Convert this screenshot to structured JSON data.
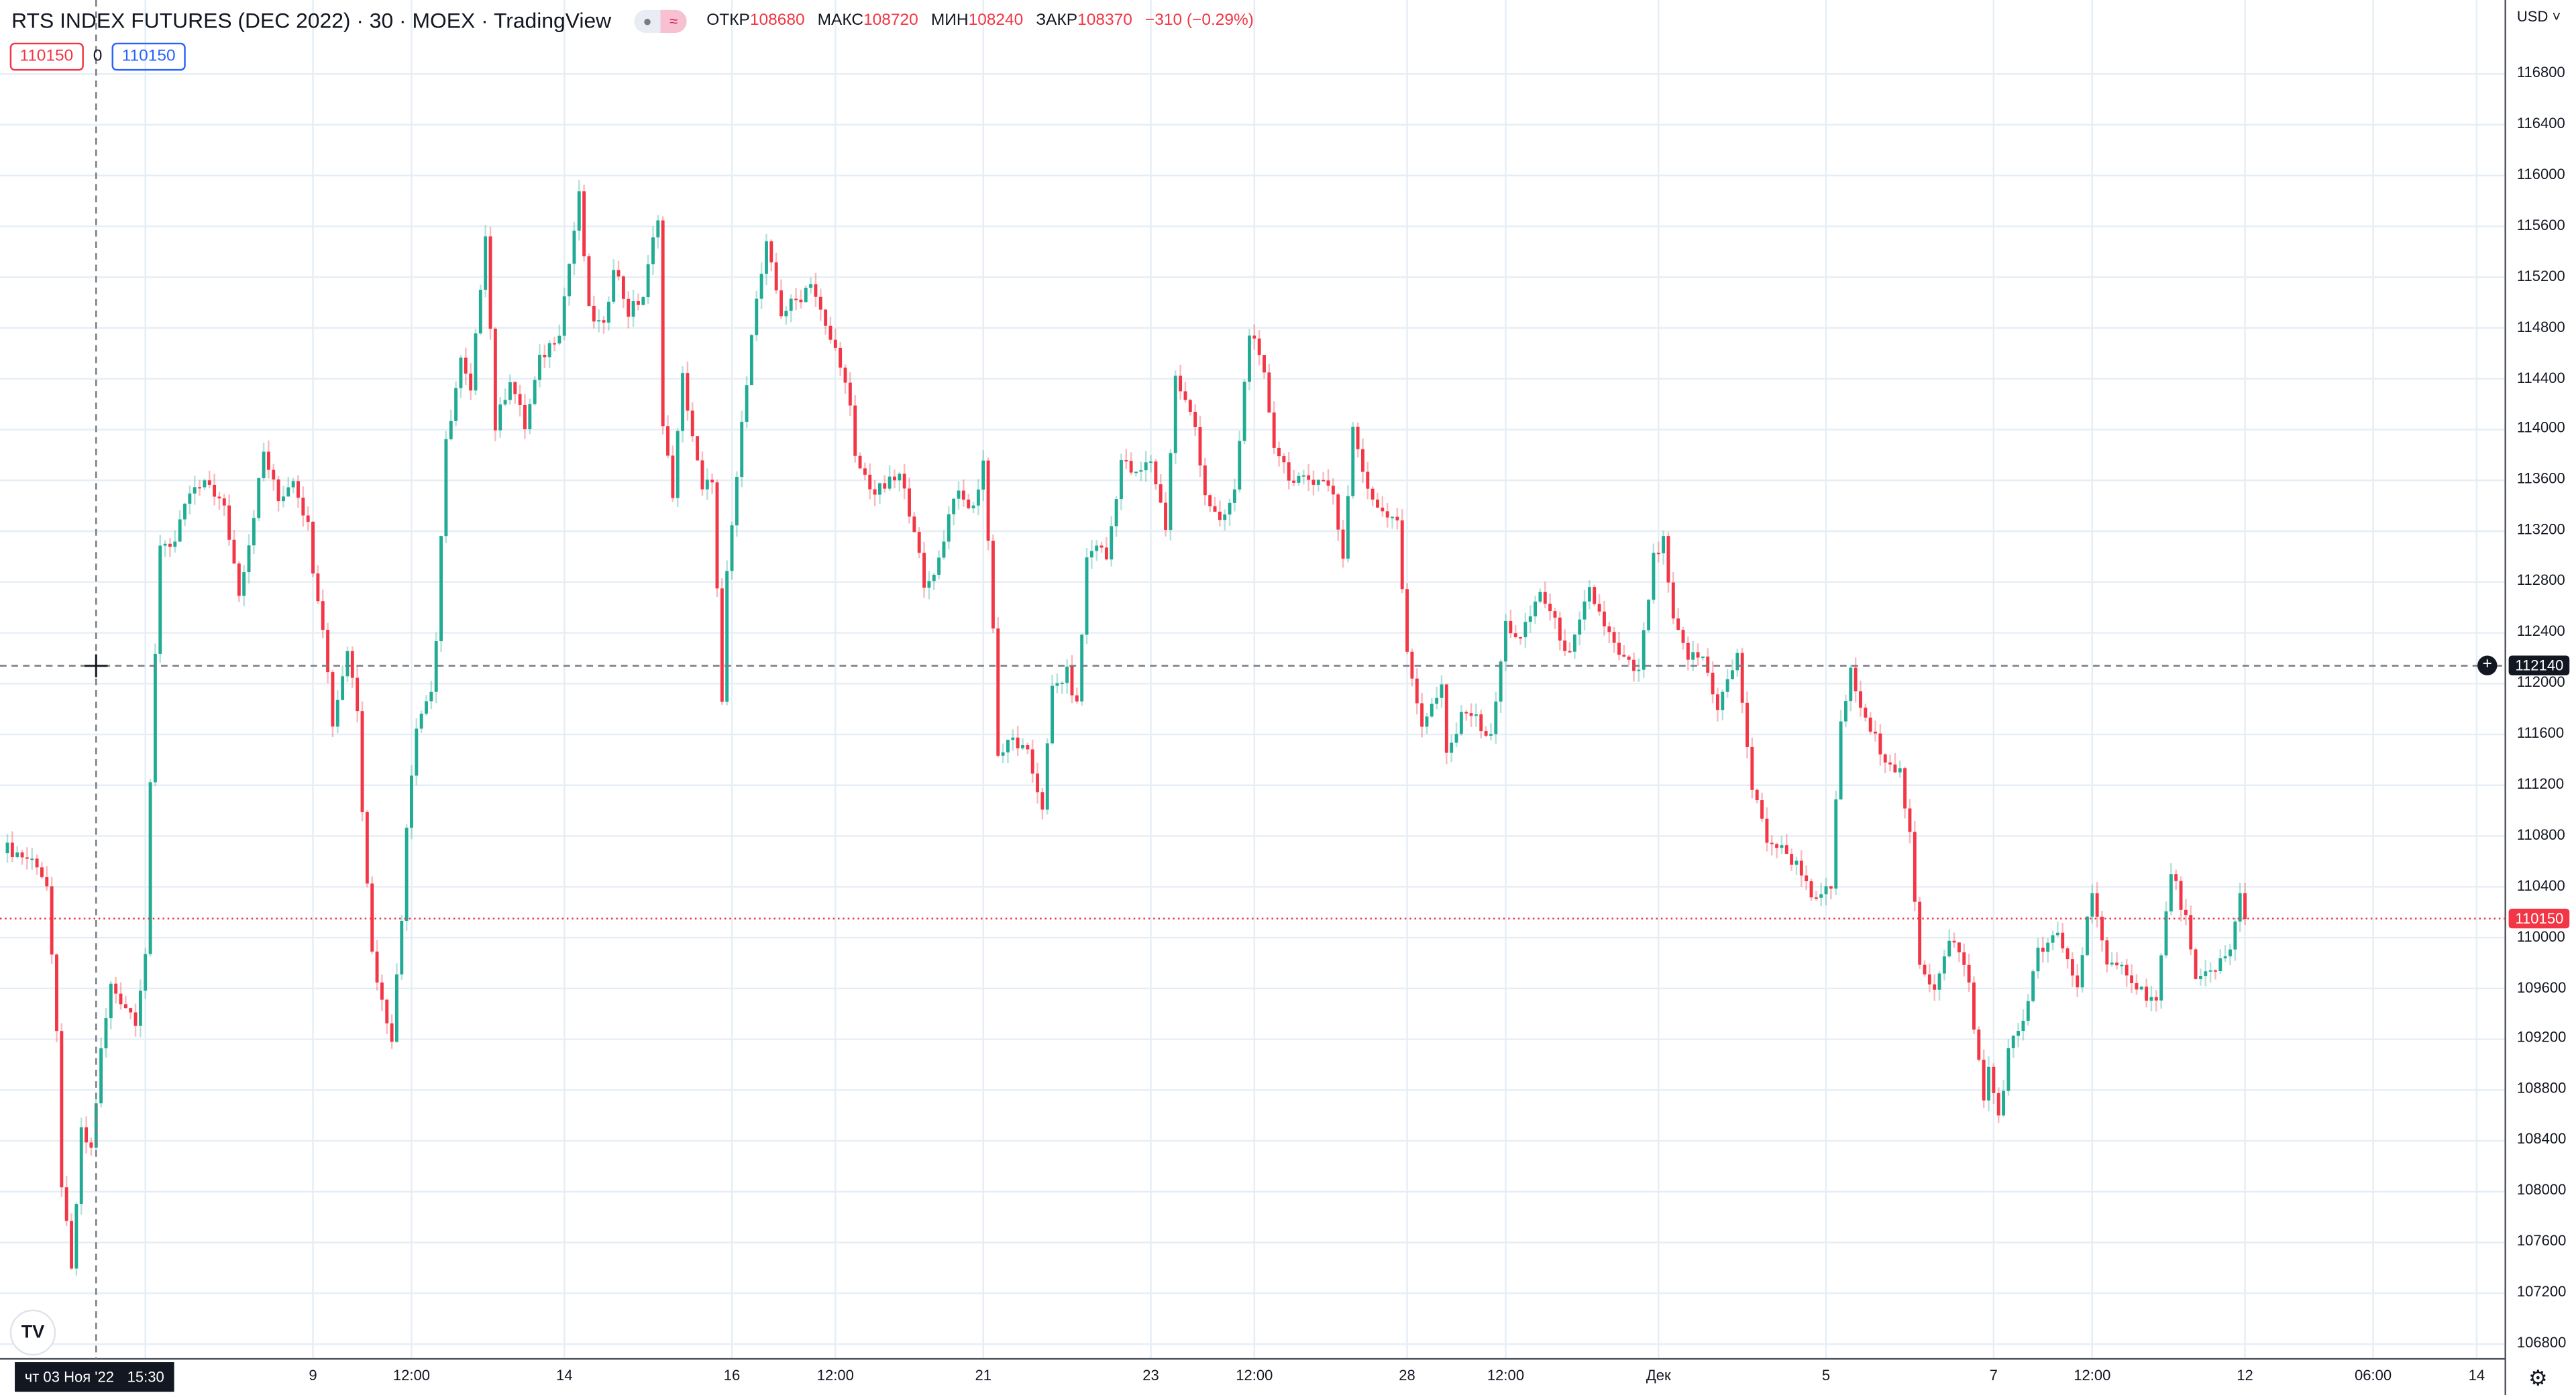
{
  "header": {
    "title": "RTS INDEX FUTURES (DEC 2022) · 30 · MOEX · TradingView",
    "toggle_left": "●",
    "toggle_right": "≈",
    "open_label": "ОТКР",
    "open_value": "108680",
    "high_label": "МАКС",
    "high_value": "108720",
    "low_label": "МИН",
    "low_value": "108240",
    "close_label": "ЗАКР",
    "close_value": "108370",
    "change": "−310 (−0.29%)"
  },
  "order_boxes": {
    "sell": "110150",
    "spread": "0",
    "buy": "110150"
  },
  "currency": "USD",
  "crosshair": {
    "price_label": "112140",
    "price": 112140,
    "time_day": "чт 03 Ноя '22",
    "time_clock": "15:30",
    "bar": 19
  },
  "last_price": {
    "label": "110150",
    "price": 110150
  },
  "colors": {
    "up": "#22ab94",
    "down": "#f23645",
    "grid": "#e6eef5",
    "last": "#f23645",
    "blue": "#2962ff"
  },
  "icons": {
    "logo": "tradingview-logo-icon",
    "settings": "gear-icon",
    "add": "plus-circle-icon"
  },
  "logo_text": "TV",
  "settings_glyph": "⚙",
  "add_glyph": "+",
  "chart_data": {
    "type": "candlestick",
    "title": "RTS INDEX FUTURES (DEC 2022) · 30 · MOEX",
    "ylim": [
      106700,
      117100
    ],
    "y_ticks": [
      116800,
      116400,
      116000,
      115600,
      115200,
      114800,
      114400,
      114000,
      113600,
      113200,
      112800,
      112400,
      112000,
      111600,
      111200,
      110800,
      110400,
      110000,
      109600,
      109200,
      108800,
      108400,
      108000,
      107600,
      107200,
      106800
    ],
    "x_ticks": [
      {
        "label": "9",
        "bar": 63
      },
      {
        "label": "12:00",
        "bar": 83
      },
      {
        "label": "14",
        "bar": 114
      },
      {
        "label": "16",
        "bar": 148
      },
      {
        "label": "12:00",
        "bar": 169
      },
      {
        "label": "21",
        "bar": 199
      },
      {
        "label": "23",
        "bar": 233
      },
      {
        "label": "12:00",
        "bar": 254
      },
      {
        "label": "28",
        "bar": 285
      },
      {
        "label": "12:00",
        "bar": 305
      },
      {
        "label": "Дек",
        "bar": 336
      },
      {
        "label": "5",
        "bar": 370
      },
      {
        "label": "7",
        "bar": 404
      },
      {
        "label": "12:00",
        "bar": 424
      },
      {
        "label": "12",
        "bar": 455
      },
      {
        "label": "06:00",
        "bar": 481
      },
      {
        "label": "14",
        "bar": 502
      }
    ],
    "bar_count": 455,
    "close_path": [
      [
        0,
        110720
      ],
      [
        7,
        110590
      ],
      [
        9,
        110400
      ],
      [
        11,
        109230
      ],
      [
        12,
        108070
      ],
      [
        14,
        107360
      ],
      [
        16,
        108460
      ],
      [
        18,
        108330
      ],
      [
        20,
        109100
      ],
      [
        22,
        109620
      ],
      [
        27,
        109360
      ],
      [
        29,
        109880
      ],
      [
        30,
        111170
      ],
      [
        31,
        112210
      ],
      [
        32,
        113110
      ],
      [
        35,
        113110
      ],
      [
        38,
        113500
      ],
      [
        42,
        113570
      ],
      [
        45,
        113370
      ],
      [
        48,
        112730
      ],
      [
        50,
        113110
      ],
      [
        53,
        113820
      ],
      [
        56,
        113440
      ],
      [
        59,
        113630
      ],
      [
        62,
        113240
      ],
      [
        63,
        112920
      ],
      [
        65,
        112470
      ],
      [
        67,
        111690
      ],
      [
        70,
        112270
      ],
      [
        72,
        111820
      ],
      [
        73,
        111040
      ],
      [
        75,
        109880
      ],
      [
        77,
        109490
      ],
      [
        79,
        109230
      ],
      [
        81,
        110140
      ],
      [
        82,
        110910
      ],
      [
        84,
        111690
      ],
      [
        87,
        111950
      ],
      [
        88,
        112340
      ],
      [
        90,
        113890
      ],
      [
        93,
        114540
      ],
      [
        95,
        114280
      ],
      [
        98,
        115570
      ],
      [
        100,
        114020
      ],
      [
        103,
        114410
      ],
      [
        106,
        114020
      ],
      [
        109,
        114540
      ],
      [
        113,
        114790
      ],
      [
        117,
        115830
      ],
      [
        119,
        114920
      ],
      [
        122,
        114790
      ],
      [
        124,
        115310
      ],
      [
        127,
        114920
      ],
      [
        130,
        115050
      ],
      [
        133,
        115700
      ],
      [
        134,
        114020
      ],
      [
        136,
        113500
      ],
      [
        138,
        114410
      ],
      [
        142,
        113500
      ],
      [
        144,
        113630
      ],
      [
        146,
        111820
      ],
      [
        147,
        112840
      ],
      [
        149,
        113630
      ],
      [
        152,
        114790
      ],
      [
        155,
        115440
      ],
      [
        158,
        114920
      ],
      [
        162,
        115050
      ],
      [
        164,
        115180
      ],
      [
        167,
        114790
      ],
      [
        170,
        114540
      ],
      [
        172,
        114150
      ],
      [
        173,
        113760
      ],
      [
        177,
        113500
      ],
      [
        182,
        113630
      ],
      [
        185,
        113240
      ],
      [
        187,
        112730
      ],
      [
        190,
        112980
      ],
      [
        193,
        113500
      ],
      [
        197,
        113370
      ],
      [
        199,
        113760
      ],
      [
        201,
        112470
      ],
      [
        202,
        111430
      ],
      [
        205,
        111560
      ],
      [
        208,
        111430
      ],
      [
        211,
        111040
      ],
      [
        213,
        111950
      ],
      [
        216,
        112080
      ],
      [
        218,
        111820
      ],
      [
        220,
        112980
      ],
      [
        222,
        113110
      ],
      [
        224,
        112980
      ],
      [
        227,
        113760
      ],
      [
        230,
        113630
      ],
      [
        233,
        113760
      ],
      [
        236,
        113240
      ],
      [
        238,
        114410
      ],
      [
        242,
        114020
      ],
      [
        244,
        113500
      ],
      [
        247,
        113240
      ],
      [
        250,
        113500
      ],
      [
        253,
        114790
      ],
      [
        256,
        114410
      ],
      [
        258,
        113890
      ],
      [
        262,
        113570
      ],
      [
        267,
        113630
      ],
      [
        270,
        113500
      ],
      [
        272,
        112980
      ],
      [
        274,
        114020
      ],
      [
        277,
        113500
      ],
      [
        280,
        113370
      ],
      [
        283,
        113310
      ],
      [
        285,
        112210
      ],
      [
        288,
        111690
      ],
      [
        292,
        111950
      ],
      [
        293,
        111430
      ],
      [
        297,
        111820
      ],
      [
        302,
        111560
      ],
      [
        305,
        112470
      ],
      [
        308,
        112340
      ],
      [
        312,
        112730
      ],
      [
        315,
        112470
      ],
      [
        318,
        112210
      ],
      [
        322,
        112730
      ],
      [
        325,
        112470
      ],
      [
        328,
        112210
      ],
      [
        332,
        112080
      ],
      [
        335,
        112980
      ],
      [
        337,
        113110
      ],
      [
        339,
        112470
      ],
      [
        342,
        112210
      ],
      [
        345,
        112210
      ],
      [
        348,
        111820
      ],
      [
        352,
        112210
      ],
      [
        355,
        111170
      ],
      [
        358,
        110780
      ],
      [
        362,
        110660
      ],
      [
        365,
        110530
      ],
      [
        368,
        110270
      ],
      [
        371,
        110400
      ],
      [
        373,
        111690
      ],
      [
        375,
        112080
      ],
      [
        378,
        111690
      ],
      [
        382,
        111430
      ],
      [
        385,
        111300
      ],
      [
        387,
        110780
      ],
      [
        389,
        109750
      ],
      [
        392,
        109620
      ],
      [
        395,
        110010
      ],
      [
        397,
        109880
      ],
      [
        399,
        109620
      ],
      [
        402,
        108710
      ],
      [
        403,
        108970
      ],
      [
        405,
        108590
      ],
      [
        407,
        109100
      ],
      [
        410,
        109360
      ],
      [
        413,
        109880
      ],
      [
        417,
        110010
      ],
      [
        421,
        109620
      ],
      [
        424,
        110400
      ],
      [
        427,
        109750
      ],
      [
        431,
        109750
      ],
      [
        433,
        109620
      ],
      [
        437,
        109490
      ],
      [
        440,
        110530
      ],
      [
        443,
        110140
      ],
      [
        445,
        109620
      ],
      [
        448,
        109750
      ],
      [
        452,
        109880
      ],
      [
        454,
        110330
      ],
      [
        455,
        110150
      ]
    ]
  }
}
